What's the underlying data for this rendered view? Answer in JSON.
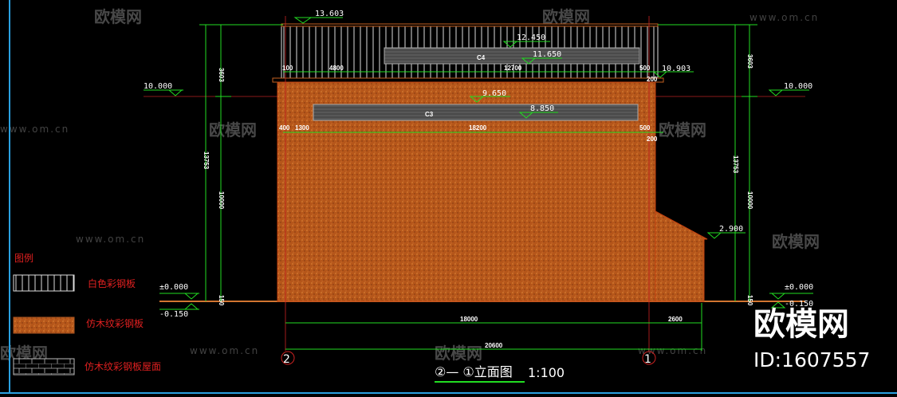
{
  "drawing": {
    "title": "②— ①立面图",
    "scale": "1:100",
    "axis_left": "2",
    "axis_right": "1",
    "panel_labels": [
      "C4",
      "C3"
    ],
    "elevations": {
      "top_rail": "13.603",
      "c4_top": "12.450",
      "c4_bottom": "11.650",
      "roof_edge": "10.903",
      "left_10": "10.000",
      "right_10": "10.000",
      "c3_top": "9.650",
      "c3_bottom": "8.850",
      "lean_to": "2.900",
      "left_zero": "±0.000",
      "right_zero": "±0.000",
      "left_minus": "-0.150",
      "right_minus": "-0.150"
    },
    "dims_upper": [
      "100",
      "4800",
      "12700",
      "500",
      "200"
    ],
    "dims_lower": [
      "400",
      "1300",
      "18200",
      "500",
      "200"
    ],
    "dims_vertical_left": [
      "3603",
      "13753",
      "10000",
      "150"
    ],
    "dims_vertical_right": [
      "3603",
      "13753",
      "10000",
      "150"
    ],
    "dims_bottom": [
      "18000",
      "2600",
      "20600"
    ]
  },
  "legend": {
    "title": "图例",
    "items": [
      "白色彩钢板",
      "仿木纹彩钢板",
      "仿木纹彩钢板屋面"
    ]
  },
  "watermark": {
    "brand": "欧模网",
    "url": "www.om.cn",
    "id": "ID:1607557"
  },
  "colors": {
    "background": "#000000",
    "wall": "#b5561a",
    "dimension": "#22dd22",
    "axis": "#cc2222",
    "border": "#2aa0e0"
  }
}
